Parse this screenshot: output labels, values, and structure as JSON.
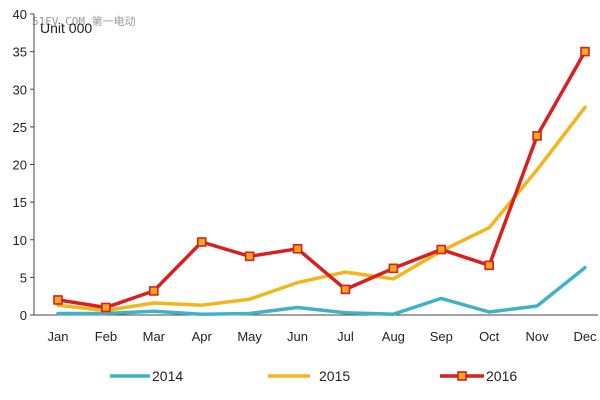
{
  "watermark": "51EV.COM 第一电动",
  "chart_data": {
    "type": "line",
    "title": "",
    "ylabel": "Unit 000",
    "xlabel": "",
    "categories": [
      "Jan",
      "Feb",
      "Mar",
      "Apr",
      "May",
      "Jun",
      "Jul",
      "Aug",
      "Sep",
      "Oct",
      "Nov",
      "Dec"
    ],
    "ylim": [
      0,
      40
    ],
    "yticks": [
      0,
      5,
      10,
      15,
      20,
      25,
      30,
      35,
      40
    ],
    "grid": false,
    "legend_position": "bottom",
    "series": [
      {
        "name": "2014",
        "color": "#3fb3c6",
        "marker": "none",
        "values": [
          0.2,
          0.2,
          0.5,
          0.1,
          0.2,
          1.0,
          0.3,
          0.1,
          2.2,
          0.4,
          1.2,
          6.3
        ]
      },
      {
        "name": "2015",
        "color": "#f2b51c",
        "marker": "none",
        "values": [
          1.3,
          0.6,
          1.6,
          1.3,
          2.1,
          4.3,
          5.7,
          4.8,
          8.5,
          11.6,
          19.3,
          27.6
        ]
      },
      {
        "name": "2016",
        "color": "#d9201f",
        "marker": "square",
        "values": [
          2.0,
          1.0,
          3.2,
          9.7,
          7.8,
          8.8,
          3.4,
          6.2,
          8.7,
          6.6,
          23.8,
          35.0
        ]
      }
    ]
  }
}
